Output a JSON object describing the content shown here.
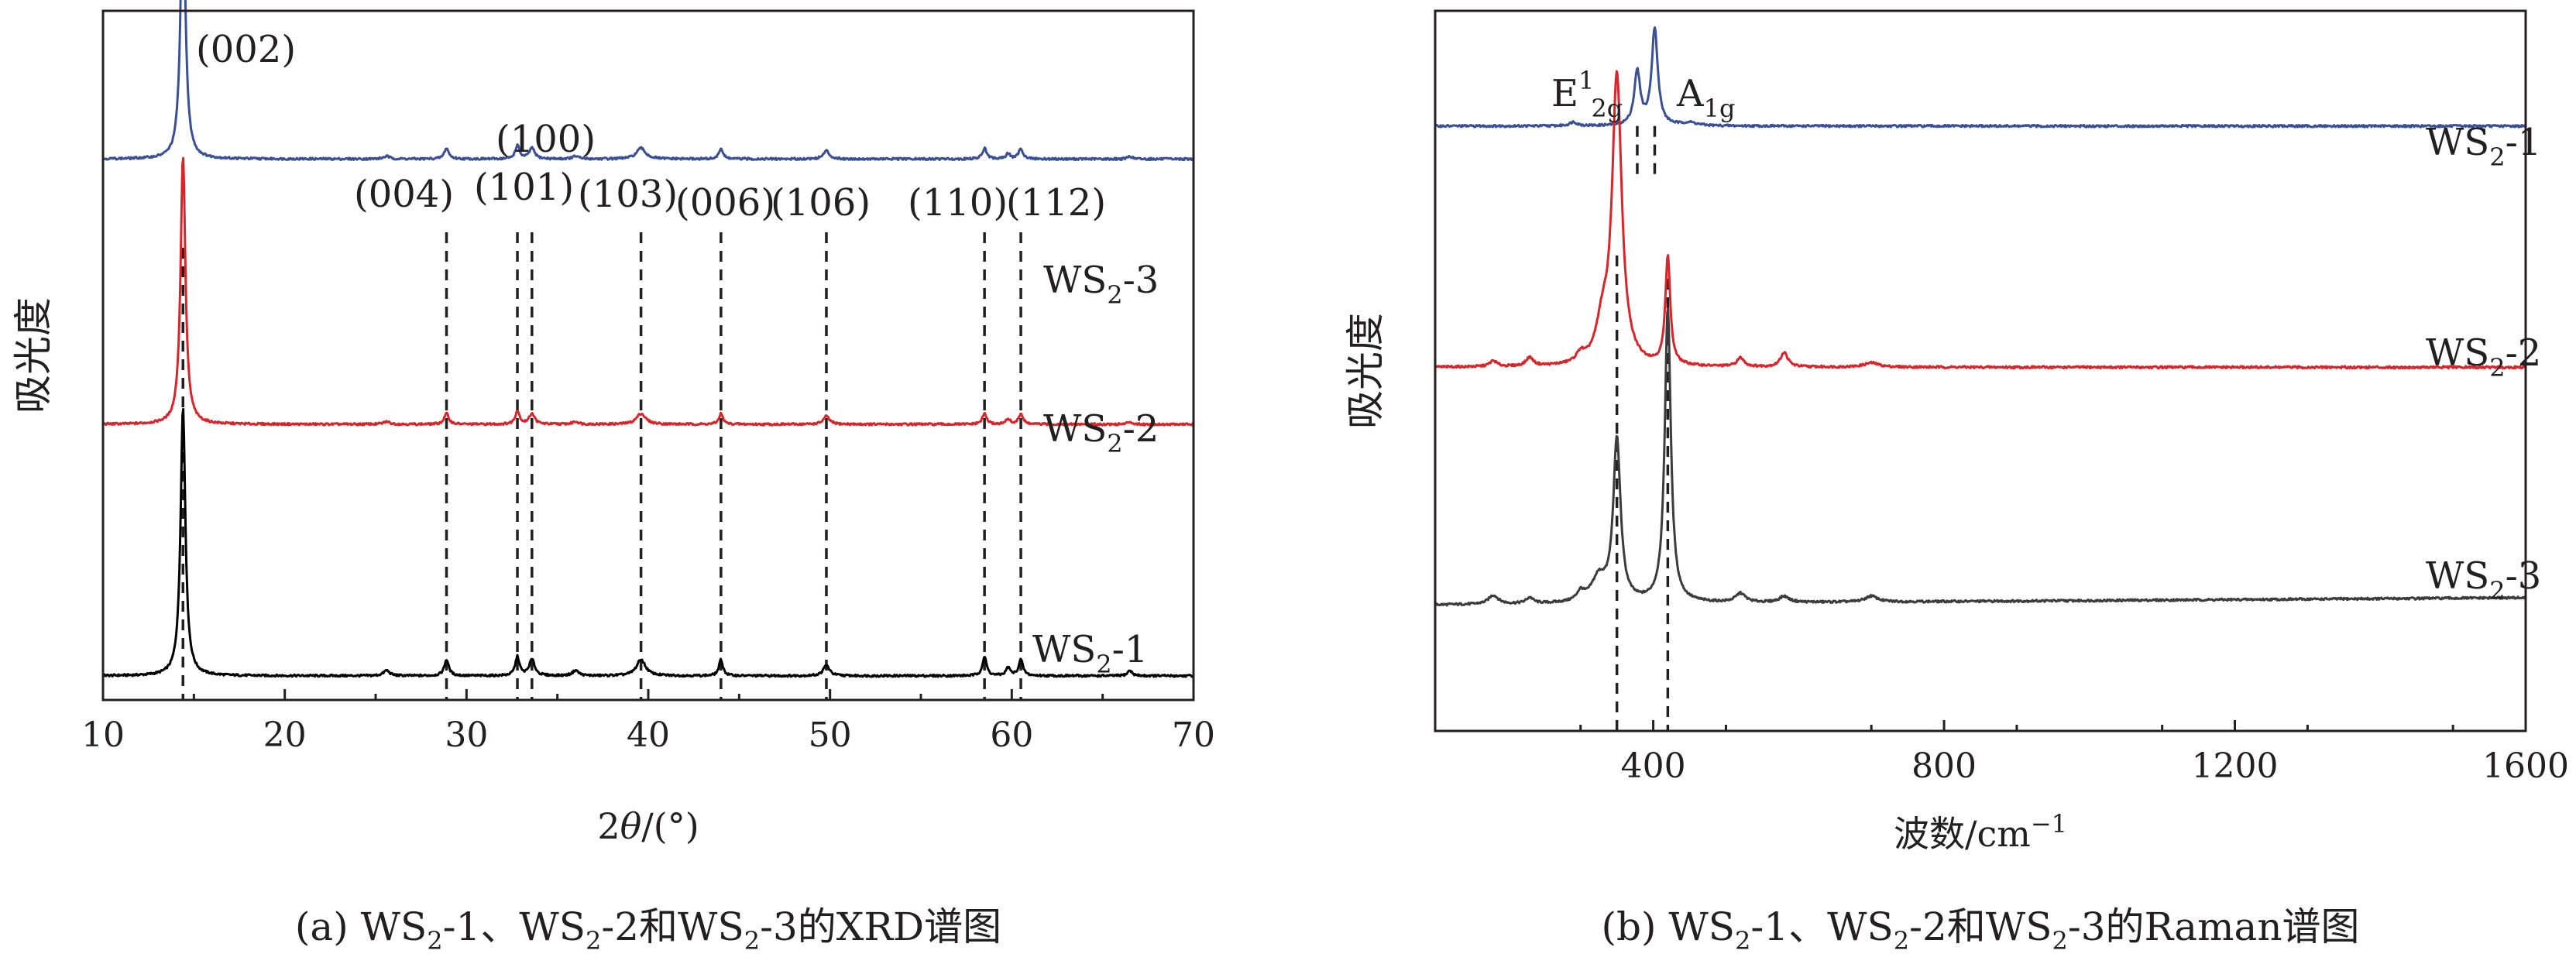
{
  "figure": {
    "background": "#ffffff",
    "axis_color": "#231f20"
  },
  "chart_data": [
    {
      "type": "line",
      "panel": "a",
      "caption": {
        "pre": "(a) WS",
        "sub1": "2",
        "mid1": "-1、WS",
        "sub2": "2",
        "mid2": "-2和WS",
        "sub3": "2",
        "post": "-3的XRD谱图"
      },
      "xlabel": {
        "pre": "2",
        "italic": "θ",
        "post": "/(°)"
      },
      "ylabel": "吸光度",
      "xlim": [
        10,
        70
      ],
      "xticks": [
        10,
        20,
        30,
        40,
        50,
        60,
        70
      ],
      "ylim": [
        0,
        1
      ],
      "yticks_visible": false,
      "peak_positions": [
        14.4,
        28.9,
        32.8,
        33.6,
        39.6,
        44.0,
        49.8,
        58.5,
        60.5
      ],
      "peak_labels": [
        {
          "text": "(002)",
          "x": 14.4
        },
        {
          "text": "(004)",
          "x": 28.9
        },
        {
          "text": "(100)",
          "x": 33.6
        },
        {
          "text": "(101)",
          "x": 33.6
        },
        {
          "text": "(103)",
          "x": 39.6
        },
        {
          "text": "(006)",
          "x": 44.0
        },
        {
          "text": "(106)",
          "x": 49.8
        },
        {
          "text": "(110)",
          "x": 58.5
        },
        {
          "text": "(112)",
          "x": 60.5
        }
      ],
      "series": [
        {
          "name": "WS2-1",
          "label_main": "WS",
          "label_sub": "2",
          "label_suffix": "-1",
          "color": "#000000",
          "baseline": 0.035,
          "scale": 0.39,
          "peaks": [
            [
              14.4,
              1.0,
              0.16
            ],
            [
              25.6,
              0.02,
              0.2
            ],
            [
              28.9,
              0.06,
              0.15
            ],
            [
              32.8,
              0.07,
              0.14
            ],
            [
              33.6,
              0.06,
              0.18
            ],
            [
              36.0,
              0.02,
              0.2
            ],
            [
              39.6,
              0.06,
              0.3
            ],
            [
              44.0,
              0.06,
              0.13
            ],
            [
              49.8,
              0.04,
              0.2
            ],
            [
              58.5,
              0.07,
              0.14
            ],
            [
              59.8,
              0.03,
              0.14
            ],
            [
              60.5,
              0.06,
              0.14
            ],
            [
              66.5,
              0.02,
              0.15
            ]
          ]
        },
        {
          "name": "WS2-2",
          "label_main": "WS",
          "label_sub": "2",
          "label_suffix": "-2",
          "color": "#d9252a",
          "baseline": 0.4,
          "scale": 0.39,
          "peaks": [
            [
              14.4,
              1.0,
              0.16
            ],
            [
              25.6,
              0.01,
              0.2
            ],
            [
              28.9,
              0.04,
              0.15
            ],
            [
              32.8,
              0.05,
              0.14
            ],
            [
              33.6,
              0.04,
              0.18
            ],
            [
              36.0,
              0.01,
              0.2
            ],
            [
              39.6,
              0.04,
              0.3
            ],
            [
              44.0,
              0.04,
              0.13
            ],
            [
              49.8,
              0.03,
              0.2
            ],
            [
              58.5,
              0.04,
              0.14
            ],
            [
              59.8,
              0.02,
              0.14
            ],
            [
              60.5,
              0.04,
              0.14
            ],
            [
              66.5,
              0.01,
              0.15
            ]
          ]
        },
        {
          "name": "WS2-3",
          "label_main": "WS",
          "label_sub": "2",
          "label_suffix": "-3",
          "color": "#3a4f94",
          "baseline": 0.785,
          "scale": 0.39,
          "peaks": [
            [
              14.4,
              1.0,
              0.16
            ],
            [
              25.6,
              0.01,
              0.2
            ],
            [
              28.9,
              0.04,
              0.15
            ],
            [
              32.8,
              0.05,
              0.14
            ],
            [
              33.6,
              0.04,
              0.18
            ],
            [
              36.0,
              0.01,
              0.2
            ],
            [
              39.6,
              0.04,
              0.3
            ],
            [
              44.0,
              0.04,
              0.13
            ],
            [
              49.8,
              0.03,
              0.2
            ],
            [
              58.5,
              0.04,
              0.14
            ],
            [
              59.8,
              0.02,
              0.14
            ],
            [
              60.5,
              0.04,
              0.14
            ],
            [
              66.5,
              0.01,
              0.15
            ]
          ]
        }
      ]
    },
    {
      "type": "line",
      "panel": "b",
      "caption": {
        "pre": "(b) WS",
        "sub1": "2",
        "mid1": "-1、WS",
        "sub2": "2",
        "mid2": "-2和WS",
        "sub3": "2",
        "post": "-3的Raman谱图"
      },
      "xlabel": {
        "pre": "波数/cm",
        "sup": "−1"
      },
      "ylabel": "吸光度",
      "xlim": [
        100,
        1600
      ],
      "xticks": [
        400,
        800,
        1200,
        1600
      ],
      "ylim": [
        0,
        1
      ],
      "yticks_visible": false,
      "peak_positions": [
        350,
        420
      ],
      "peak_labels": [
        {
          "main": "E",
          "sup": "1",
          "sub": "2g",
          "x": 350
        },
        {
          "main": "A",
          "sub": "1g",
          "x": 420
        }
      ],
      "ref_peaks_series1": [
        378,
        402
      ],
      "series": [
        {
          "name": "WS2-1",
          "label_main": "WS",
          "label_sub": "2",
          "label_suffix": "-1",
          "color": "#3a4f94",
          "baseline": 0.84,
          "scale": 0.135,
          "peaks": [
            [
              378,
              0.55,
              5
            ],
            [
              402,
              1.0,
              5
            ],
            [
              290,
              0.04,
              6
            ],
            [
              450,
              0.03,
              12
            ]
          ]
        },
        {
          "name": "WS2-2",
          "label_main": "WS",
          "label_sub": "2",
          "label_suffix": "-2",
          "color": "#d9252a",
          "baseline": 0.505,
          "scale": 0.4,
          "peaks": [
            [
              350,
              1.0,
              8
            ],
            [
              330,
              0.12,
              10
            ],
            [
              420,
              0.38,
              4
            ],
            [
              180,
              0.02,
              6
            ],
            [
              230,
              0.03,
              6
            ],
            [
              300,
              0.03,
              6
            ],
            [
              520,
              0.03,
              6
            ],
            [
              580,
              0.05,
              6
            ],
            [
              700,
              0.015,
              12
            ]
          ]
        },
        {
          "name": "WS2-3",
          "label_main": "WS",
          "label_sub": "2",
          "label_suffix": "-3",
          "color": "#3c3c3c",
          "baseline": 0.175,
          "scale": 0.41,
          "peaks": [
            [
              350,
              0.55,
              6
            ],
            [
              325,
              0.08,
              12
            ],
            [
              420,
              1.0,
              5
            ],
            [
              180,
              0.03,
              8
            ],
            [
              230,
              0.02,
              6
            ],
            [
              300,
              0.03,
              6
            ],
            [
              520,
              0.03,
              8
            ],
            [
              580,
              0.02,
              8
            ],
            [
              700,
              0.02,
              10
            ]
          ]
        }
      ]
    }
  ]
}
